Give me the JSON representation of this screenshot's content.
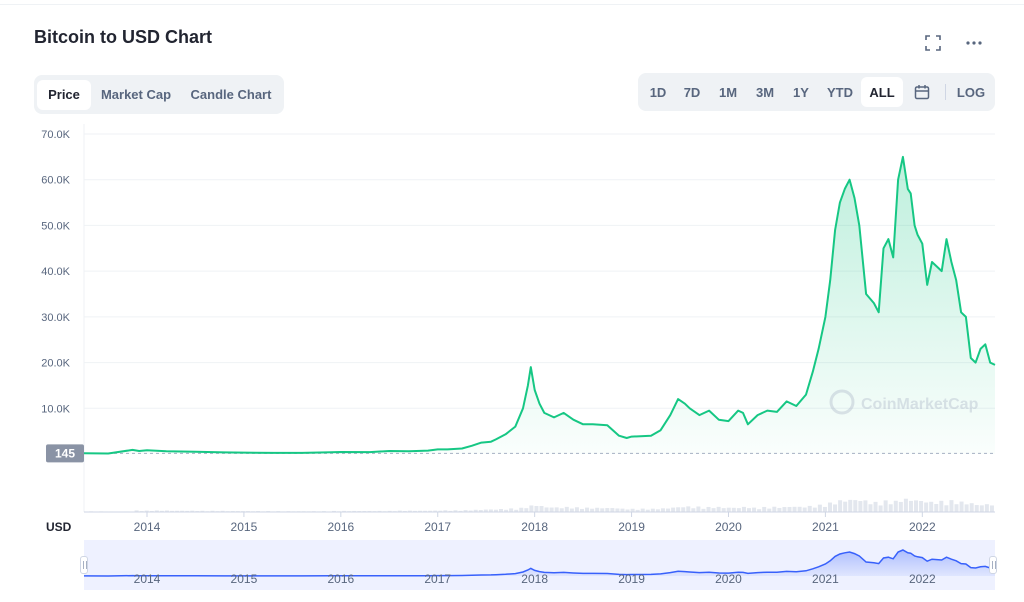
{
  "header": {
    "title": "Bitcoin to USD Chart"
  },
  "icons": {
    "fullscreen": "fullscreen-icon",
    "more": "more-icon",
    "calendar": "calendar-icon"
  },
  "view_tabs": [
    {
      "label": "Price",
      "active": true
    },
    {
      "label": "Market Cap",
      "active": false
    },
    {
      "label": "Candle Chart",
      "active": false
    }
  ],
  "ranges": [
    {
      "label": "1D",
      "active": false
    },
    {
      "label": "7D",
      "active": false
    },
    {
      "label": "1M",
      "active": false
    },
    {
      "label": "3M",
      "active": false
    },
    {
      "label": "1Y",
      "active": false
    },
    {
      "label": "YTD",
      "active": false
    },
    {
      "label": "ALL",
      "active": true
    }
  ],
  "log_label": "LOG",
  "watermark": "CoinMarketCap",
  "currency_label": "USD",
  "colors": {
    "line": "#16c784",
    "fill": "#e6f8ef",
    "navigator": "#3861fb",
    "navigator_bg": "#eef1ff",
    "grid": "#eff2f5",
    "text": "#58667e"
  },
  "chart_data": {
    "type": "area",
    "title": "Bitcoin to USD Chart",
    "xlabel": "",
    "ylabel": "",
    "currency": "USD",
    "ylim": [
      0,
      70000
    ],
    "yticks": [
      "70.0K",
      "60.0K",
      "50.0K",
      "40.0K",
      "30.0K",
      "20.0K",
      "10.0K"
    ],
    "yticks_values": [
      70000,
      60000,
      50000,
      40000,
      30000,
      20000,
      10000
    ],
    "xlim": [
      2013.35,
      2022.75
    ],
    "xticks": [
      "2014",
      "2015",
      "2016",
      "2017",
      "2018",
      "2019",
      "2020",
      "2021",
      "2022"
    ],
    "xticks_values": [
      2014,
      2015,
      2016,
      2017,
      2018,
      2019,
      2020,
      2021,
      2022
    ],
    "start_value_label": "145",
    "start_value": 145,
    "grid": true,
    "series": [
      {
        "x": [
          2013.35,
          2013.6,
          2013.85,
          2013.92,
          2014.0,
          2014.2,
          2014.5,
          2014.8,
          2015.0,
          2015.3,
          2015.6,
          2015.9,
          2016.0,
          2016.3,
          2016.5,
          2016.7,
          2016.9,
          2017.0,
          2017.1,
          2017.25,
          2017.35,
          2017.45,
          2017.55,
          2017.6,
          2017.7,
          2017.8,
          2017.88,
          2017.93,
          2017.96,
          2018.0,
          2018.05,
          2018.1,
          2018.2,
          2018.3,
          2018.4,
          2018.5,
          2018.6,
          2018.75,
          2018.87,
          2018.95,
          2019.0,
          2019.2,
          2019.3,
          2019.4,
          2019.48,
          2019.55,
          2019.6,
          2019.7,
          2019.8,
          2019.9,
          2020.0,
          2020.1,
          2020.15,
          2020.2,
          2020.3,
          2020.4,
          2020.5,
          2020.6,
          2020.7,
          2020.8,
          2020.87,
          2020.93,
          2021.0,
          2021.05,
          2021.1,
          2021.15,
          2021.2,
          2021.25,
          2021.3,
          2021.35,
          2021.42,
          2021.5,
          2021.55,
          2021.6,
          2021.65,
          2021.7,
          2021.75,
          2021.8,
          2021.85,
          2021.88,
          2021.92,
          2021.95,
          2022.0,
          2022.05,
          2022.1,
          2022.2,
          2022.25,
          2022.3,
          2022.35,
          2022.4,
          2022.45,
          2022.5,
          2022.55,
          2022.6,
          2022.65,
          2022.7,
          2022.75
        ],
        "y": [
          145,
          110,
          900,
          650,
          800,
          600,
          500,
          350,
          300,
          250,
          250,
          380,
          430,
          420,
          650,
          600,
          740,
          1000,
          1000,
          1200,
          1800,
          2500,
          2700,
          3200,
          4300,
          6000,
          10000,
          15000,
          19000,
          14000,
          11000,
          9000,
          8000,
          9000,
          7500,
          6500,
          6500,
          6300,
          4000,
          3500,
          3800,
          4000,
          5200,
          8500,
          12000,
          11000,
          10000,
          8500,
          9500,
          7500,
          7200,
          9500,
          9000,
          6500,
          8500,
          9500,
          9200,
          11500,
          10500,
          13000,
          18000,
          23000,
          30000,
          38000,
          49000,
          55000,
          58000,
          60000,
          56000,
          50000,
          35000,
          33000,
          31000,
          45000,
          47000,
          43000,
          60000,
          65000,
          58000,
          57000,
          50000,
          48000,
          46000,
          37000,
          42000,
          40000,
          47000,
          42000,
          38000,
          31000,
          30000,
          21000,
          20000,
          23000,
          24000,
          20000,
          19500
        ]
      }
    ]
  }
}
